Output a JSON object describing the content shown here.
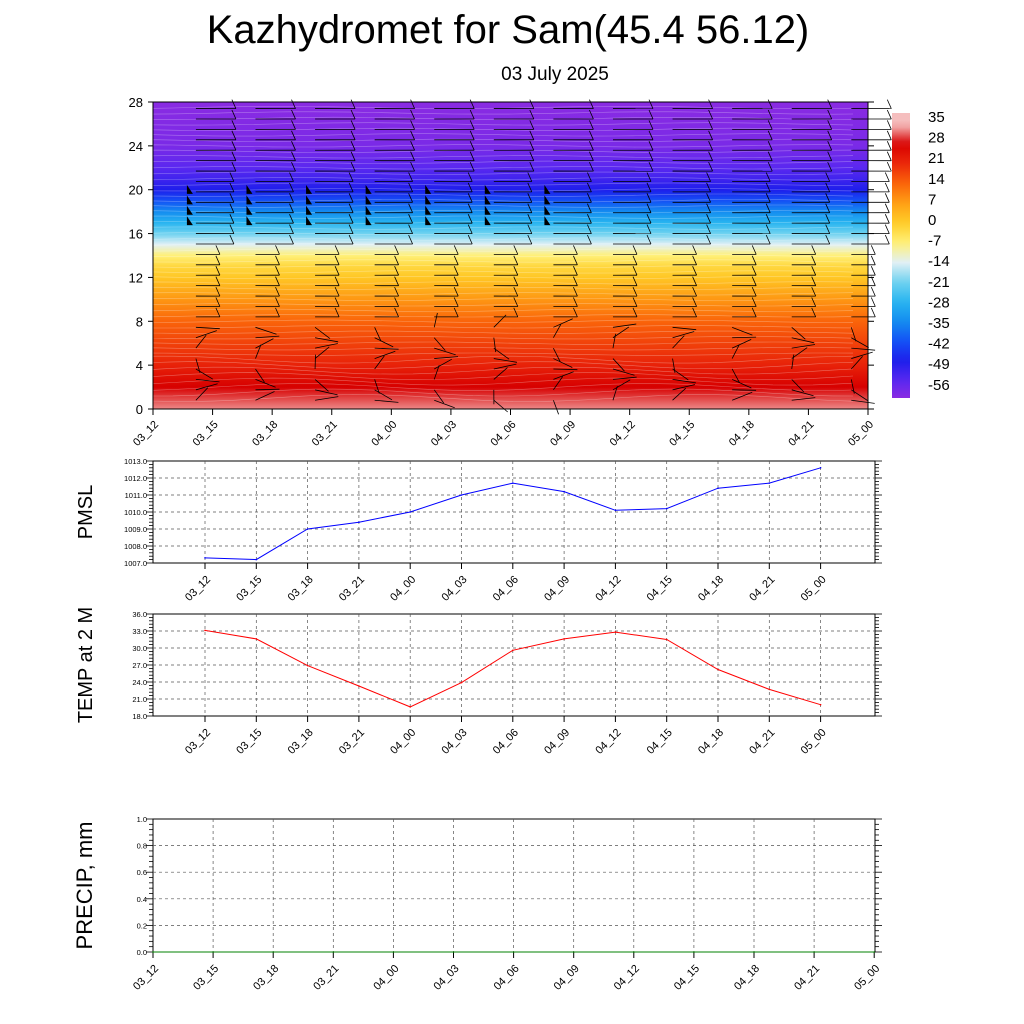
{
  "header": {
    "title": "Kazhydromet for Sam(45.4 56.12)",
    "subtitle": "03 July 2025"
  },
  "chart_data": [
    {
      "type": "heatmap",
      "title": "",
      "xlabel": "",
      "ylabel": "",
      "x_ticks": [
        "03_12",
        "03_15",
        "03_18",
        "03_21",
        "04_00",
        "04_03",
        "04_06",
        "04_09",
        "04_12",
        "04_15",
        "04_18",
        "04_21",
        "05_00"
      ],
      "y_ticks": [
        0,
        4,
        8,
        12,
        16,
        20,
        24,
        28
      ],
      "ylim": [
        0,
        28
      ],
      "colorbar_labels": [
        "35",
        "28",
        "21",
        "14",
        "7",
        "0",
        "-7",
        "-14",
        "-21",
        "-28",
        "-35",
        "-42",
        "-49",
        "-56"
      ],
      "temperature_profile": {
        "levels": [
          0,
          2,
          4,
          6,
          8,
          10,
          12,
          13,
          14,
          15,
          16,
          17,
          18,
          19,
          20,
          21,
          22,
          23,
          24,
          28
        ],
        "values": [
          33,
          28,
          22,
          18,
          14,
          8,
          1,
          -2,
          -7,
          -14,
          -21,
          -28,
          -35,
          -42,
          -49,
          -53,
          -56,
          -58,
          -60,
          -62
        ]
      },
      "has_wind_barbs": true,
      "grid": false
    },
    {
      "type": "line",
      "ylabel": "PMSL",
      "x": [
        "03_12",
        "03_15",
        "03_18",
        "03_21",
        "04_00",
        "04_03",
        "04_06",
        "04_09",
        "04_12",
        "04_15",
        "04_18",
        "04_21",
        "05_00"
      ],
      "y_ticks": [
        "1007.0",
        "1008.0",
        "1009.0",
        "1010.0",
        "1011.0",
        "1012.0",
        "1013.0"
      ],
      "ylim": [
        1007.0,
        1013.0
      ],
      "series": [
        {
          "values": [
            1007.3,
            1007.2,
            1009.0,
            1009.4,
            1010.0,
            1011.0,
            1011.7,
            1011.2,
            1010.1,
            1010.2,
            1011.4,
            1011.7,
            1012.6
          ],
          "color": "#0000ff"
        }
      ],
      "grid": true
    },
    {
      "type": "line",
      "ylabel": "TEMP at 2 M",
      "x": [
        "03_12",
        "03_15",
        "03_18",
        "03_21",
        "04_00",
        "04_03",
        "04_06",
        "04_09",
        "04_12",
        "04_15",
        "04_18",
        "04_21",
        "05_00"
      ],
      "y_ticks": [
        "18.0",
        "21.0",
        "24.0",
        "27.0",
        "30.0",
        "33.0",
        "36.0"
      ],
      "ylim": [
        18.0,
        36.0
      ],
      "series": [
        {
          "values": [
            33.1,
            31.6,
            26.9,
            23.3,
            19.6,
            23.9,
            29.6,
            31.6,
            32.8,
            31.5,
            26.2,
            22.7,
            20.0
          ],
          "color": "#ff0000"
        }
      ],
      "grid": true
    },
    {
      "type": "line",
      "ylabel": "PRECIP, mm",
      "x": [
        "03_12",
        "03_15",
        "03_18",
        "03_21",
        "04_00",
        "04_03",
        "04_06",
        "04_09",
        "04_12",
        "04_15",
        "04_18",
        "04_21",
        "05_00"
      ],
      "y_ticks": [
        "0.0",
        "0.2",
        "0.4",
        "0.6",
        "0.8",
        "1.0"
      ],
      "ylim": [
        0.0,
        1.0
      ],
      "series": [
        {
          "values": [
            0,
            0,
            0,
            0,
            0,
            0,
            0,
            0,
            0,
            0,
            0,
            0,
            0
          ],
          "color": "#008000"
        }
      ],
      "grid": true
    }
  ],
  "colors": {
    "pmsl_line": "#0000ff",
    "temp_line": "#ff0000",
    "precip_line": "#008000",
    "cold_end": "#8a2be2",
    "warm_end": "#d80000"
  }
}
